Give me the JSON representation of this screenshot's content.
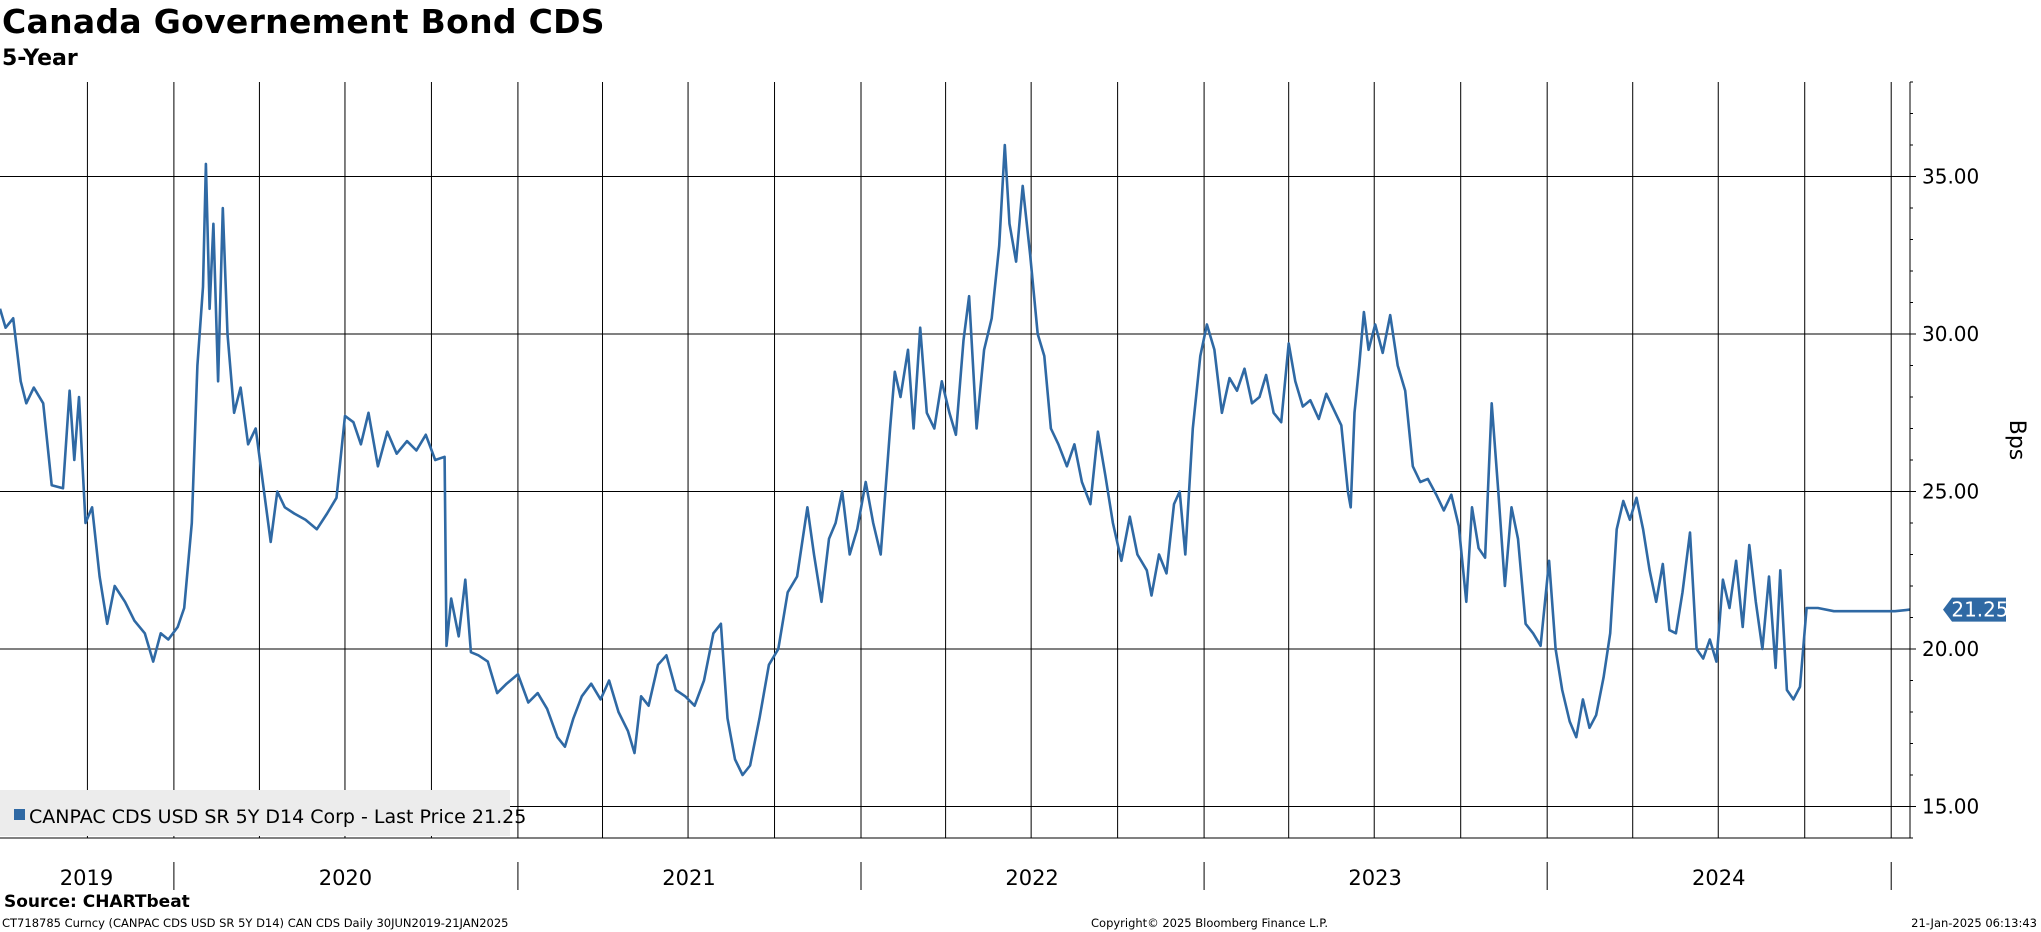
{
  "header": {
    "title": "Canada Governement Bond CDS",
    "subtitle": "5-Year"
  },
  "footer": {
    "source": "Source: CHARTbeat",
    "left_text": "CT718785 Curncy (CANPAC CDS USD SR 5Y D14) CAN CDS  Daily 30JUN2019-21JAN2025",
    "center_text": "Copyright© 2025 Bloomberg Finance L.P.",
    "right_text": "21-Jan-2025 06:13:43"
  },
  "colors": {
    "series": "#2f69a4",
    "grid": "#000000",
    "legend_bg": "#ececec"
  },
  "chart_data": {
    "type": "line",
    "ylabel": "Bps",
    "ylim": [
      14,
      38
    ],
    "xlim": [
      "2019-06-30",
      "2025-01-21"
    ],
    "y_ticks": [
      15,
      20,
      25,
      30,
      35
    ],
    "y_tick_labels": [
      "15.00",
      "20.00",
      "25.00",
      "30.00",
      "35.00"
    ],
    "x_year_labels": [
      {
        "year": "2019",
        "start": "2019-06-30",
        "end": "2019-12-31"
      },
      {
        "year": "2020",
        "start": "2020-01-01",
        "end": "2020-12-31"
      },
      {
        "year": "2021",
        "start": "2021-01-01",
        "end": "2021-12-31"
      },
      {
        "year": "2022",
        "start": "2022-01-01",
        "end": "2022-12-31"
      },
      {
        "year": "2023",
        "start": "2023-01-01",
        "end": "2023-12-31"
      },
      {
        "year": "2024",
        "start": "2024-01-01",
        "end": "2024-12-31"
      }
    ],
    "x_quarter_gridlines": [
      "2019-10-01",
      "2020-01-01",
      "2020-04-01",
      "2020-07-01",
      "2020-10-01",
      "2021-01-01",
      "2021-04-01",
      "2021-07-01",
      "2021-10-01",
      "2022-01-01",
      "2022-04-01",
      "2022-07-01",
      "2022-10-01",
      "2023-01-01",
      "2023-04-01",
      "2023-07-01",
      "2023-10-01",
      "2024-01-01",
      "2024-04-01",
      "2024-07-01",
      "2024-10-01",
      "2025-01-01"
    ],
    "grid": true,
    "legend_position": "bottom-left",
    "last_value_label": "21.25",
    "series": [
      {
        "name": "CANPAC CDS USD SR 5Y D14 Corp - Last Price 21.25",
        "points": [
          [
            "2019-06-30",
            30.8
          ],
          [
            "2019-07-06",
            30.2
          ],
          [
            "2019-07-14",
            30.5
          ],
          [
            "2019-07-22",
            28.5
          ],
          [
            "2019-07-28",
            27.8
          ],
          [
            "2019-08-05",
            28.3
          ],
          [
            "2019-08-15",
            27.8
          ],
          [
            "2019-08-24",
            25.2
          ],
          [
            "2019-09-05",
            25.1
          ],
          [
            "2019-09-12",
            28.2
          ],
          [
            "2019-09-17",
            26.0
          ],
          [
            "2019-09-22",
            28.0
          ],
          [
            "2019-09-29",
            24.0
          ],
          [
            "2019-10-06",
            24.5
          ],
          [
            "2019-10-14",
            22.3
          ],
          [
            "2019-10-22",
            20.8
          ],
          [
            "2019-10-30",
            22.0
          ],
          [
            "2019-11-10",
            21.5
          ],
          [
            "2019-11-20",
            20.9
          ],
          [
            "2019-12-01",
            20.5
          ],
          [
            "2019-12-10",
            19.6
          ],
          [
            "2019-12-18",
            20.5
          ],
          [
            "2019-12-26",
            20.3
          ],
          [
            "2020-01-05",
            20.7
          ],
          [
            "2020-01-12",
            21.3
          ],
          [
            "2020-01-20",
            24.0
          ],
          [
            "2020-01-26",
            29.0
          ],
          [
            "2020-02-01",
            31.5
          ],
          [
            "2020-02-04",
            35.4
          ],
          [
            "2020-02-08",
            30.8
          ],
          [
            "2020-02-12",
            33.5
          ],
          [
            "2020-02-17",
            28.5
          ],
          [
            "2020-02-22",
            34.0
          ],
          [
            "2020-02-27",
            30.0
          ],
          [
            "2020-03-05",
            27.5
          ],
          [
            "2020-03-12",
            28.3
          ],
          [
            "2020-03-20",
            26.5
          ],
          [
            "2020-03-28",
            27.0
          ],
          [
            "2020-04-05",
            25.2
          ],
          [
            "2020-04-13",
            23.4
          ],
          [
            "2020-04-20",
            25.0
          ],
          [
            "2020-04-28",
            24.5
          ],
          [
            "2020-05-08",
            24.3
          ],
          [
            "2020-05-20",
            24.1
          ],
          [
            "2020-06-01",
            23.8
          ],
          [
            "2020-06-12",
            24.3
          ],
          [
            "2020-06-22",
            24.8
          ],
          [
            "2020-07-01",
            27.4
          ],
          [
            "2020-07-10",
            27.2
          ],
          [
            "2020-07-18",
            26.5
          ],
          [
            "2020-07-26",
            27.5
          ],
          [
            "2020-08-05",
            25.8
          ],
          [
            "2020-08-15",
            26.9
          ],
          [
            "2020-08-25",
            26.2
          ],
          [
            "2020-09-05",
            26.6
          ],
          [
            "2020-09-15",
            26.3
          ],
          [
            "2020-09-25",
            26.8
          ],
          [
            "2020-10-05",
            26.0
          ],
          [
            "2020-10-15",
            26.1
          ],
          [
            "2020-10-17",
            20.1
          ],
          [
            "2020-10-22",
            21.6
          ],
          [
            "2020-10-30",
            20.4
          ],
          [
            "2020-11-06",
            22.2
          ],
          [
            "2020-11-12",
            19.9
          ],
          [
            "2020-11-20",
            19.8
          ],
          [
            "2020-11-30",
            19.6
          ],
          [
            "2020-12-10",
            18.6
          ],
          [
            "2020-12-20",
            18.9
          ],
          [
            "2021-01-01",
            19.2
          ],
          [
            "2021-01-12",
            18.3
          ],
          [
            "2021-01-22",
            18.6
          ],
          [
            "2021-02-01",
            18.1
          ],
          [
            "2021-02-12",
            17.2
          ],
          [
            "2021-02-20",
            16.9
          ],
          [
            "2021-03-01",
            17.8
          ],
          [
            "2021-03-10",
            18.5
          ],
          [
            "2021-03-20",
            18.9
          ],
          [
            "2021-03-30",
            18.4
          ],
          [
            "2021-04-08",
            19.0
          ],
          [
            "2021-04-18",
            18.0
          ],
          [
            "2021-04-28",
            17.4
          ],
          [
            "2021-05-05",
            16.7
          ],
          [
            "2021-05-12",
            18.5
          ],
          [
            "2021-05-20",
            18.2
          ],
          [
            "2021-05-30",
            19.5
          ],
          [
            "2021-06-08",
            19.8
          ],
          [
            "2021-06-18",
            18.7
          ],
          [
            "2021-06-28",
            18.5
          ],
          [
            "2021-07-08",
            18.2
          ],
          [
            "2021-07-18",
            19.0
          ],
          [
            "2021-07-28",
            20.5
          ],
          [
            "2021-08-05",
            20.8
          ],
          [
            "2021-08-12",
            17.8
          ],
          [
            "2021-08-20",
            16.5
          ],
          [
            "2021-08-28",
            16.0
          ],
          [
            "2021-09-05",
            16.3
          ],
          [
            "2021-09-15",
            17.8
          ],
          [
            "2021-09-25",
            19.5
          ],
          [
            "2021-10-05",
            20.0
          ],
          [
            "2021-10-15",
            21.8
          ],
          [
            "2021-10-25",
            22.3
          ],
          [
            "2021-11-05",
            24.5
          ],
          [
            "2021-11-12",
            23.0
          ],
          [
            "2021-11-20",
            21.5
          ],
          [
            "2021-11-28",
            23.5
          ],
          [
            "2021-12-05",
            24.0
          ],
          [
            "2021-12-12",
            25.0
          ],
          [
            "2021-12-20",
            23.0
          ],
          [
            "2021-12-28",
            23.8
          ],
          [
            "2022-01-06",
            25.3
          ],
          [
            "2022-01-14",
            24.0
          ],
          [
            "2022-01-22",
            23.0
          ],
          [
            "2022-02-01",
            27.0
          ],
          [
            "2022-02-06",
            28.8
          ],
          [
            "2022-02-12",
            28.0
          ],
          [
            "2022-02-20",
            29.5
          ],
          [
            "2022-02-26",
            27.0
          ],
          [
            "2022-03-05",
            30.2
          ],
          [
            "2022-03-12",
            27.5
          ],
          [
            "2022-03-20",
            27.0
          ],
          [
            "2022-03-28",
            28.5
          ],
          [
            "2022-04-05",
            27.5
          ],
          [
            "2022-04-12",
            26.8
          ],
          [
            "2022-04-20",
            29.8
          ],
          [
            "2022-04-26",
            31.2
          ],
          [
            "2022-05-04",
            27.0
          ],
          [
            "2022-05-12",
            29.5
          ],
          [
            "2022-05-20",
            30.5
          ],
          [
            "2022-05-28",
            32.8
          ],
          [
            "2022-06-03",
            36.0
          ],
          [
            "2022-06-08",
            33.5
          ],
          [
            "2022-06-15",
            32.3
          ],
          [
            "2022-06-22",
            34.7
          ],
          [
            "2022-06-30",
            32.5
          ],
          [
            "2022-07-08",
            30.0
          ],
          [
            "2022-07-15",
            29.3
          ],
          [
            "2022-07-22",
            27.0
          ],
          [
            "2022-07-30",
            26.5
          ],
          [
            "2022-08-08",
            25.8
          ],
          [
            "2022-08-16",
            26.5
          ],
          [
            "2022-08-24",
            25.3
          ],
          [
            "2022-09-02",
            24.6
          ],
          [
            "2022-09-10",
            26.9
          ],
          [
            "2022-09-18",
            25.5
          ],
          [
            "2022-09-26",
            24.0
          ],
          [
            "2022-10-05",
            22.8
          ],
          [
            "2022-10-14",
            24.2
          ],
          [
            "2022-10-22",
            23.0
          ],
          [
            "2022-11-01",
            22.5
          ],
          [
            "2022-11-06",
            21.7
          ],
          [
            "2022-11-14",
            23.0
          ],
          [
            "2022-11-22",
            22.4
          ],
          [
            "2022-11-30",
            24.6
          ],
          [
            "2022-12-06",
            25.0
          ],
          [
            "2022-12-12",
            23.0
          ],
          [
            "2022-12-20",
            27.0
          ],
          [
            "2022-12-28",
            29.3
          ],
          [
            "2023-01-04",
            30.3
          ],
          [
            "2023-01-12",
            29.5
          ],
          [
            "2023-01-20",
            27.5
          ],
          [
            "2023-01-28",
            28.6
          ],
          [
            "2023-02-05",
            28.2
          ],
          [
            "2023-02-13",
            28.9
          ],
          [
            "2023-02-21",
            27.8
          ],
          [
            "2023-03-01",
            28.0
          ],
          [
            "2023-03-08",
            28.7
          ],
          [
            "2023-03-16",
            27.5
          ],
          [
            "2023-03-24",
            27.2
          ],
          [
            "2023-04-01",
            29.7
          ],
          [
            "2023-04-08",
            28.5
          ],
          [
            "2023-04-16",
            27.7
          ],
          [
            "2023-04-24",
            27.9
          ],
          [
            "2023-05-03",
            27.3
          ],
          [
            "2023-05-11",
            28.1
          ],
          [
            "2023-05-19",
            27.6
          ],
          [
            "2023-05-27",
            27.1
          ],
          [
            "2023-06-03",
            25.0
          ],
          [
            "2023-06-06",
            24.5
          ],
          [
            "2023-06-10",
            27.5
          ],
          [
            "2023-06-15",
            29.0
          ],
          [
            "2023-06-20",
            30.7
          ],
          [
            "2023-06-25",
            29.5
          ],
          [
            "2023-07-02",
            30.3
          ],
          [
            "2023-07-10",
            29.4
          ],
          [
            "2023-07-18",
            30.6
          ],
          [
            "2023-07-26",
            29.0
          ],
          [
            "2023-08-03",
            28.2
          ],
          [
            "2023-08-11",
            25.8
          ],
          [
            "2023-08-19",
            25.3
          ],
          [
            "2023-08-27",
            25.4
          ],
          [
            "2023-09-05",
            24.9
          ],
          [
            "2023-09-13",
            24.4
          ],
          [
            "2023-09-21",
            24.9
          ],
          [
            "2023-09-29",
            23.9
          ],
          [
            "2023-10-07",
            21.5
          ],
          [
            "2023-10-13",
            24.5
          ],
          [
            "2023-10-20",
            23.2
          ],
          [
            "2023-10-27",
            22.9
          ],
          [
            "2023-11-03",
            27.8
          ],
          [
            "2023-11-10",
            25.0
          ],
          [
            "2023-11-17",
            22.0
          ],
          [
            "2023-11-24",
            24.5
          ],
          [
            "2023-12-01",
            23.5
          ],
          [
            "2023-12-09",
            20.8
          ],
          [
            "2023-12-17",
            20.5
          ],
          [
            "2023-12-25",
            20.1
          ],
          [
            "2024-01-03",
            22.8
          ],
          [
            "2024-01-10",
            20.0
          ],
          [
            "2024-01-17",
            18.7
          ],
          [
            "2024-01-25",
            17.7
          ],
          [
            "2024-02-01",
            17.2
          ],
          [
            "2024-02-08",
            18.4
          ],
          [
            "2024-02-15",
            17.5
          ],
          [
            "2024-02-22",
            17.9
          ],
          [
            "2024-03-01",
            19.1
          ],
          [
            "2024-03-08",
            20.5
          ],
          [
            "2024-03-15",
            23.8
          ],
          [
            "2024-03-22",
            24.7
          ],
          [
            "2024-03-29",
            24.1
          ],
          [
            "2024-04-05",
            24.8
          ],
          [
            "2024-04-12",
            23.8
          ],
          [
            "2024-04-19",
            22.5
          ],
          [
            "2024-04-26",
            21.5
          ],
          [
            "2024-05-03",
            22.7
          ],
          [
            "2024-05-10",
            20.6
          ],
          [
            "2024-05-17",
            20.5
          ],
          [
            "2024-05-24",
            21.8
          ],
          [
            "2024-06-01",
            23.7
          ],
          [
            "2024-06-08",
            20.0
          ],
          [
            "2024-06-15",
            19.7
          ],
          [
            "2024-06-22",
            20.3
          ],
          [
            "2024-06-29",
            19.6
          ],
          [
            "2024-07-06",
            22.2
          ],
          [
            "2024-07-13",
            21.3
          ],
          [
            "2024-07-20",
            22.8
          ],
          [
            "2024-07-27",
            20.7
          ],
          [
            "2024-08-03",
            23.3
          ],
          [
            "2024-08-10",
            21.5
          ],
          [
            "2024-08-17",
            20.0
          ],
          [
            "2024-08-24",
            22.3
          ],
          [
            "2024-08-31",
            19.4
          ],
          [
            "2024-09-05",
            22.5
          ],
          [
            "2024-09-12",
            18.7
          ],
          [
            "2024-09-19",
            18.4
          ],
          [
            "2024-09-26",
            18.8
          ],
          [
            "2024-10-03",
            21.3
          ],
          [
            "2024-10-15",
            21.3
          ],
          [
            "2024-11-01",
            21.2
          ],
          [
            "2024-11-20",
            21.2
          ],
          [
            "2024-12-10",
            21.2
          ],
          [
            "2025-01-05",
            21.2
          ],
          [
            "2025-01-21",
            21.25
          ]
        ]
      }
    ]
  }
}
